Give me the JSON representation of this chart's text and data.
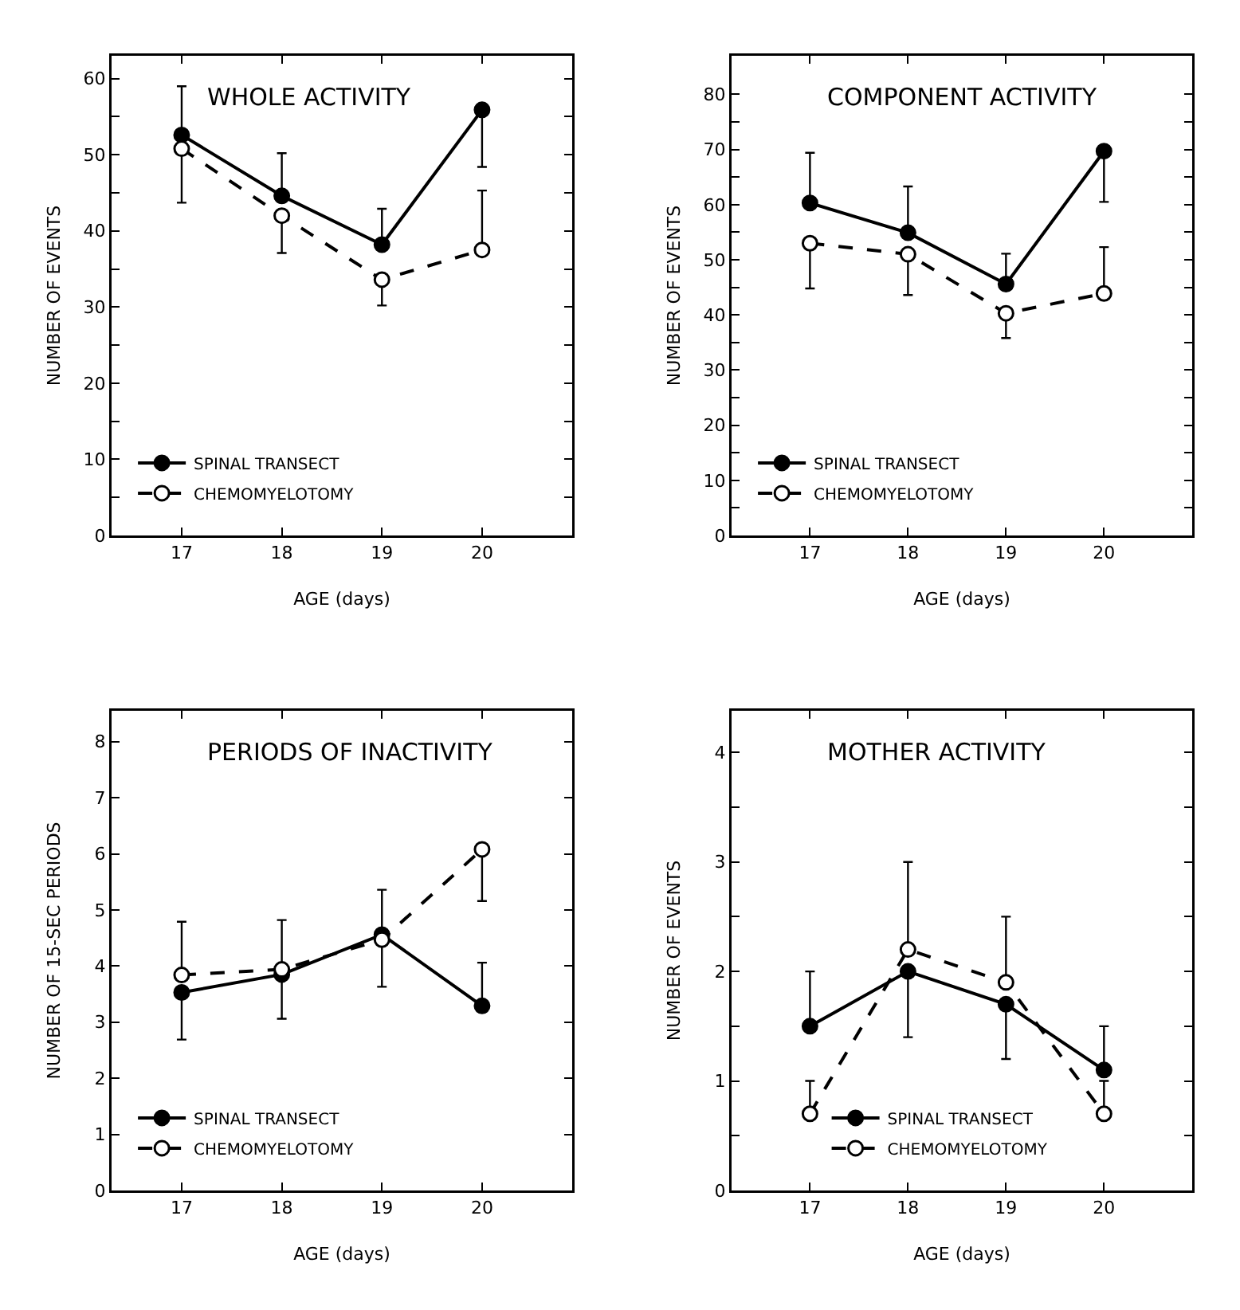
{
  "chart_data": [
    {
      "type": "line",
      "title": "WHOLE ACTIVITY",
      "xlabel": "AGE (days)",
      "ylabel": "NUMBER OF EVENTS",
      "x": [
        17,
        18,
        19,
        20
      ],
      "xlim": [
        16.3,
        20.9
      ],
      "xticks": [
        17,
        18,
        19,
        20
      ],
      "ylim": [
        0,
        63
      ],
      "yticks": [
        0,
        {
          "value": 5,
          "label": null
        },
        10,
        {
          "value": 15,
          "label": null
        },
        20,
        {
          "value": 25,
          "label": null
        },
        30,
        {
          "value": 35,
          "label": null
        },
        40,
        {
          "value": 45,
          "label": null
        },
        50,
        {
          "value": 55,
          "label": null
        },
        60
      ],
      "grid": false,
      "legend": "bottom left",
      "marker": "circle",
      "series": [
        {
          "name": "SPINAL TRANSECT",
          "color": "#000000",
          "line_style": "solid",
          "values": [
            52.6,
            44.6,
            38.2,
            55.9
          ],
          "errors": [
            [
              52.6,
              59.0
            ],
            [
              44.6,
              50.2
            ],
            [
              38.2,
              42.9
            ],
            [
              48.4,
              55.9
            ]
          ]
        },
        {
          "name": "CHEMOMYELOTOMY",
          "color": "#000000",
          "line_style": "dashed",
          "values": [
            50.8,
            42.0,
            33.6,
            37.5
          ],
          "errors": [
            [
              43.7,
              50.8
            ],
            [
              37.1,
              42.0
            ],
            [
              30.2,
              33.6
            ],
            [
              37.5,
              45.3
            ]
          ]
        }
      ]
    },
    {
      "type": "line",
      "title": "COMPONENT ACTIVITY",
      "xlabel": "AGE (days)",
      "ylabel": "NUMBER OF EVENTS",
      "x": [
        17,
        18,
        19,
        20
      ],
      "xlim": [
        16.2,
        20.9
      ],
      "xticks": [
        17,
        18,
        19,
        20
      ],
      "ylim": [
        0,
        87
      ],
      "yticks": [
        0,
        {
          "value": 5,
          "label": null
        },
        10,
        {
          "value": 15,
          "label": null
        },
        20,
        {
          "value": 25,
          "label": null
        },
        30,
        {
          "value": 35,
          "label": null
        },
        40,
        {
          "value": 45,
          "label": null
        },
        50,
        {
          "value": 55,
          "label": null
        },
        60,
        {
          "value": 65,
          "label": null
        },
        70,
        {
          "value": 75,
          "label": null
        },
        80
      ],
      "grid": false,
      "legend": "bottom left",
      "marker": "circle",
      "series": [
        {
          "name": "SPINAL TRANSECT",
          "color": "#000000",
          "line_style": "solid",
          "values": [
            60.3,
            54.9,
            45.6,
            69.7
          ],
          "errors": [
            [
              60.3,
              69.4
            ],
            [
              54.9,
              63.3
            ],
            [
              45.6,
              51.1
            ],
            [
              60.5,
              69.7
            ]
          ]
        },
        {
          "name": "CHEMOMYELOTOMY",
          "color": "#000000",
          "line_style": "dashed",
          "values": [
            53.0,
            51.0,
            40.3,
            43.9
          ],
          "errors": [
            [
              44.8,
              53.0
            ],
            [
              43.6,
              51.0
            ],
            [
              35.8,
              40.3
            ],
            [
              43.9,
              52.3
            ]
          ]
        }
      ]
    },
    {
      "type": "line",
      "title": "PERIODS OF INACTIVITY",
      "xlabel": "AGE (days)",
      "ylabel": "NUMBER OF 15-SEC PERIODS",
      "x": [
        17,
        18,
        19,
        20
      ],
      "xlim": [
        16.3,
        20.9
      ],
      "xticks": [
        17,
        18,
        19,
        20
      ],
      "ylim": [
        0,
        8.55
      ],
      "yticks": [
        0,
        1,
        2,
        3,
        4,
        5,
        6,
        7,
        8
      ],
      "grid": false,
      "legend": "bottom left",
      "marker": "circle",
      "series": [
        {
          "name": "SPINAL TRANSECT",
          "color": "#000000",
          "line_style": "solid",
          "values": [
            3.53,
            3.85,
            4.56,
            3.29
          ],
          "errors": [
            [
              2.69,
              3.53
            ],
            [
              3.06,
              3.85
            ],
            [
              4.56,
              5.36
            ],
            [
              3.29,
              4.06
            ]
          ]
        },
        {
          "name": "CHEMOMYELOTOMY",
          "color": "#000000",
          "line_style": "dashed",
          "values": [
            3.84,
            3.94,
            4.47,
            6.08
          ],
          "errors": [
            [
              3.84,
              4.79
            ],
            [
              3.94,
              4.82
            ],
            [
              3.63,
              4.47
            ],
            [
              5.16,
              6.08
            ]
          ]
        }
      ]
    },
    {
      "type": "line",
      "title": "MOTHER ACTIVITY",
      "xlabel": "AGE (days)",
      "ylabel": "NUMBER OF EVENTS",
      "x": [
        17,
        18,
        19,
        20
      ],
      "xlim": [
        16.2,
        20.9
      ],
      "xticks": [
        17,
        18,
        19,
        20
      ],
      "ylim": [
        0,
        4.38
      ],
      "yticks": [
        0,
        {
          "value": 0.5,
          "label": null
        },
        1,
        {
          "value": 1.5,
          "label": null
        },
        2,
        {
          "value": 2.5,
          "label": null
        },
        3,
        {
          "value": 3.5,
          "label": null
        },
        4
      ],
      "grid": false,
      "legend": "bottom",
      "marker": "circle",
      "series": [
        {
          "name": "SPINAL TRANSECT",
          "color": "#000000",
          "line_style": "solid",
          "values": [
            1.5,
            2.0,
            1.7,
            1.1
          ],
          "errors": [
            [
              1.5,
              2.0
            ],
            [
              1.4,
              2.0
            ],
            [
              1.2,
              1.7
            ],
            [
              1.1,
              1.5
            ]
          ]
        },
        {
          "name": "CHEMOMYELOTOMY",
          "color": "#000000",
          "line_style": "dashed",
          "values": [
            0.7,
            2.2,
            1.9,
            0.7
          ],
          "errors": [
            [
              0.7,
              1.0
            ],
            [
              2.2,
              3.0
            ],
            [
              1.9,
              2.5
            ],
            [
              0.7,
              1.0
            ]
          ]
        }
      ]
    }
  ]
}
